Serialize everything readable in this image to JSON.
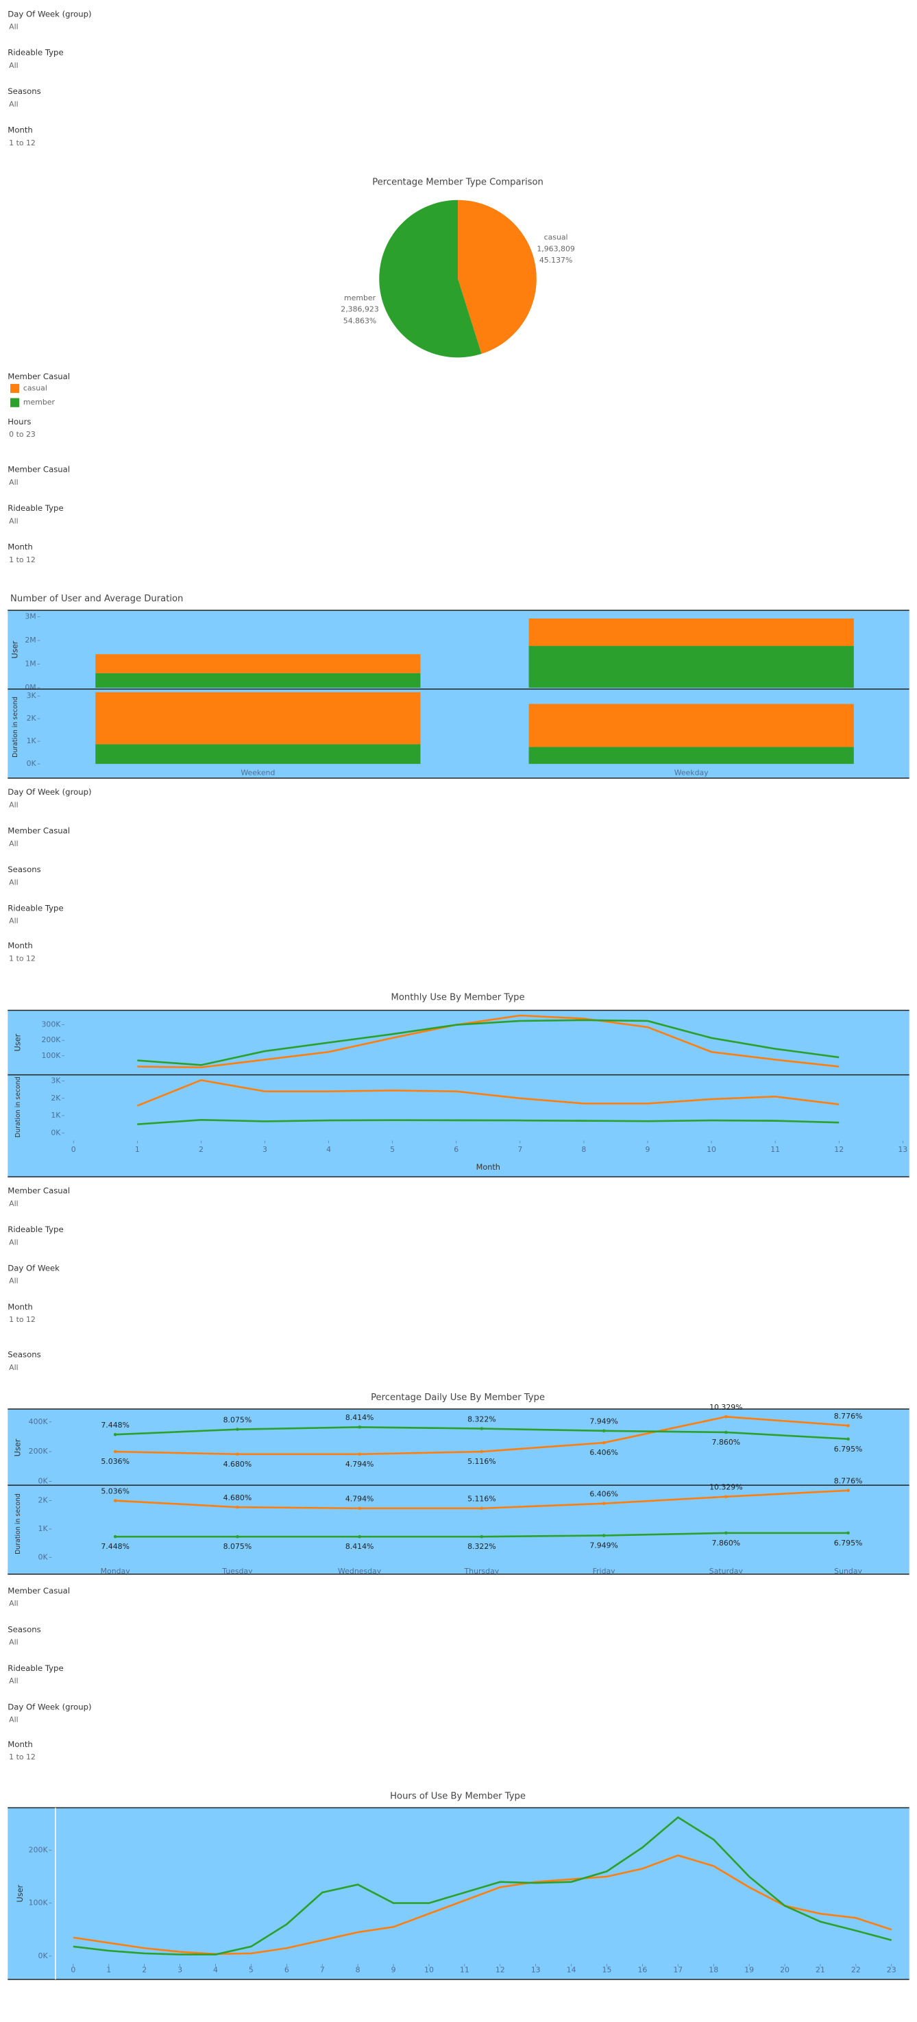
{
  "filter_groups": [
    [
      {
        "label": "Day Of Week (group)",
        "value": "All"
      },
      {
        "label": "Rideable Type",
        "value": "All"
      },
      {
        "label": "Seasons",
        "value": "All"
      },
      {
        "label": "Month",
        "value": "1 to 12"
      }
    ],
    [
      {
        "label": "Hours",
        "value": "0 to 23"
      },
      {
        "label": "Member Casual",
        "value": "All"
      },
      {
        "label": "Rideable Type",
        "value": "All"
      },
      {
        "label": "Month",
        "value": "1 to 12"
      }
    ],
    [
      {
        "label": "Day Of Week (group)",
        "value": "All"
      },
      {
        "label": "Member Casual",
        "value": "All"
      },
      {
        "label": "Seasons",
        "value": "All"
      },
      {
        "label": "Rideable Type",
        "value": "All"
      },
      {
        "label": "Month",
        "value": "1 to 12"
      }
    ],
    [
      {
        "label": "Member Casual",
        "value": "All"
      },
      {
        "label": "Rideable Type",
        "value": "All"
      },
      {
        "label": "Day Of Week",
        "value": "All"
      },
      {
        "label": "Month",
        "value": "1 to 12"
      },
      {
        "label": "Seasons",
        "value": "All"
      }
    ],
    [
      {
        "label": "Member Casual",
        "value": "All"
      },
      {
        "label": "Seasons",
        "value": "All"
      },
      {
        "label": "Rideable Type",
        "value": "All"
      },
      {
        "label": "Day Of Week (group)",
        "value": "All"
      },
      {
        "label": "Month",
        "value": "1 to 12"
      }
    ]
  ],
  "chart_data": [
    {
      "type": "pie",
      "title": "Percentage Member Type Comparison",
      "categories": [
        "casual",
        "member"
      ],
      "values": [
        45.137,
        54.863
      ],
      "value_labels": [
        "45.137%",
        "54.863%"
      ],
      "count_labels": [
        "1,963,809",
        "2,386,923"
      ],
      "colors": [
        "#ff7f0e",
        "#2ca02c"
      ],
      "legend_title": "Member Casual"
    },
    {
      "type": "stacked_bar",
      "title": "Number of User and Average Duration",
      "categories": [
        "Weekend",
        "Weekday"
      ],
      "panes": [
        {
          "y_label": "User",
          "ylim": [
            0,
            3220000
          ],
          "yticks": [
            {
              "value": 0,
              "label": "0M"
            },
            {
              "value": 1000000,
              "label": "1M"
            },
            {
              "value": 2000000,
              "label": "2M"
            },
            {
              "value": 3000000,
              "label": "3M"
            }
          ],
          "series": [
            {
              "color": "#ff7f0e",
              "values": [
                800000,
                1160000
              ]
            },
            {
              "color": "#2ca02c",
              "values": [
                620000,
                1770000
              ]
            }
          ]
        },
        {
          "y_label": "Duration in second",
          "ylim": [
            0,
            3250
          ],
          "yticks": [
            {
              "value": 0,
              "label": "0K"
            },
            {
              "value": 1000,
              "label": "1K"
            },
            {
              "value": 2000,
              "label": "2K"
            },
            {
              "value": 3000,
              "label": "3K"
            }
          ],
          "series": [
            {
              "color": "#ff7f0e",
              "values": [
                2300,
                1900
              ]
            },
            {
              "color": "#2ca02c",
              "values": [
                870,
                750
              ]
            }
          ]
        }
      ]
    },
    {
      "type": "line",
      "title": "Monthly Use By Member Type",
      "x": [
        1,
        2,
        3,
        4,
        5,
        6,
        7,
        8,
        9,
        10,
        11,
        12
      ],
      "xlim": [
        0,
        13
      ],
      "xticks": [
        0,
        1,
        2,
        3,
        4,
        5,
        6,
        7,
        8,
        9,
        10,
        11,
        12,
        13
      ],
      "x_label": "Month",
      "panes": [
        {
          "y_label": "User",
          "ylim": [
            -15000,
            385000
          ],
          "yticks": [
            {
              "value": 100000,
              "label": "100K"
            },
            {
              "value": 200000,
              "label": "200K"
            },
            {
              "value": 300000,
              "label": "300K"
            }
          ],
          "series": [
            {
              "color": "#ff7f0e",
              "values": [
                30000,
                25000,
                75000,
                125000,
                215000,
                300000,
                360000,
                340000,
                285000,
                125000,
                75000,
                30000
              ]
            },
            {
              "color": "#2ca02c",
              "values": [
                70000,
                40000,
                130000,
                185000,
                240000,
                300000,
                325000,
                330000,
                325000,
                215000,
                145000,
                90000
              ]
            }
          ]
        },
        {
          "y_label": "Duration in second",
          "ylim": [
            -300,
            3280
          ],
          "yticks": [
            {
              "value": 0,
              "label": "0K"
            },
            {
              "value": 1000,
              "label": "1K"
            },
            {
              "value": 2000,
              "label": "2K"
            },
            {
              "value": 3000,
              "label": "3K"
            }
          ],
          "series": [
            {
              "color": "#ff7f0e",
              "values": [
                1570,
                3050,
                2400,
                2400,
                2450,
                2400,
                2000,
                1700,
                1700,
                1950,
                2100,
                1650
              ]
            },
            {
              "color": "#2ca02c",
              "values": [
                500,
                750,
                670,
                720,
                740,
                730,
                720,
                700,
                680,
                720,
                700,
                600
              ]
            }
          ]
        }
      ]
    },
    {
      "type": "category_line",
      "title": "Percentage Daily Use By Member Type",
      "categories": [
        "Monday",
        "Tuesday",
        "Wednesday",
        "Thursday",
        "Friday",
        "Saturday",
        "Sunday"
      ],
      "panes": [
        {
          "y_label": "User",
          "ylim": [
            -26000,
            478000
          ],
          "yticks": [
            {
              "value": 0,
              "label": "0K"
            },
            {
              "value": 200000,
              "label": "200K"
            },
            {
              "value": 400000,
              "label": "400K"
            }
          ],
          "series": [
            {
              "color": "#ff7f0e",
              "values": [
                200000,
                183000,
                183000,
                200000,
                260000,
                435000,
                375000
              ],
              "point_labels": [
                "5.036%",
                "4.680%",
                "4.794%",
                "5.116%",
                "6.406%",
                "10.329%",
                "8.776%"
              ]
            },
            {
              "color": "#2ca02c",
              "values": [
                315000,
                350000,
                365000,
                355000,
                340000,
                330000,
                285000
              ],
              "point_labels": [
                "7.448%",
                "8.075%",
                "8.414%",
                "8.322%",
                "7.949%",
                "7.860%",
                "6.795%"
              ]
            }
          ]
        },
        {
          "y_label": "Duration in second",
          "ylim": [
            -140,
            2500
          ],
          "yticks": [
            {
              "value": 0,
              "label": "0K"
            },
            {
              "value": 1000,
              "label": "1K"
            },
            {
              "value": 2000,
              "label": "2K"
            }
          ],
          "series": [
            {
              "color": "#ff7f0e",
              "values": [
                2000,
                1770,
                1730,
                1730,
                1900,
                2140,
                2360
              ],
              "point_labels": [
                "5.036%",
                "4.680%",
                "4.794%",
                "5.116%",
                "6.406%",
                "10.329%",
                "8.776%"
              ]
            },
            {
              "color": "#2ca02c",
              "values": [
                730,
                730,
                730,
                730,
                770,
                860,
                860
              ],
              "point_labels": [
                "7.448%",
                "8.075%",
                "8.414%",
                "8.322%",
                "7.949%",
                "7.860%",
                "6.795%"
              ]
            }
          ]
        }
      ]
    },
    {
      "type": "line",
      "title": "Hours of Use By Member Type",
      "x": [
        0,
        1,
        2,
        3,
        4,
        5,
        6,
        7,
        8,
        9,
        10,
        11,
        12,
        13,
        14,
        15,
        16,
        17,
        18,
        19,
        20,
        21,
        22,
        23
      ],
      "xlim": [
        -0.5,
        23.5
      ],
      "xticks": [
        0,
        1,
        2,
        3,
        4,
        5,
        6,
        7,
        8,
        9,
        10,
        11,
        12,
        13,
        14,
        15,
        16,
        17,
        18,
        19,
        20,
        21,
        22,
        23
      ],
      "panes": [
        {
          "y_label": "User",
          "ylim": [
            -44000,
            280000
          ],
          "yticks": [
            {
              "value": 0,
              "label": "0K"
            },
            {
              "value": 100000,
              "label": "100K"
            },
            {
              "value": 200000,
              "label": "200K"
            }
          ],
          "series": [
            {
              "color": "#ff7f0e",
              "values": [
                35000,
                25000,
                15000,
                8000,
                4000,
                5000,
                15000,
                30000,
                45000,
                55000,
                80000,
                105000,
                130000,
                140000,
                145000,
                150000,
                165000,
                190000,
                170000,
                130000,
                95000,
                80000,
                72000,
                50000
              ]
            },
            {
              "color": "#2ca02c",
              "values": [
                18000,
                10000,
                5000,
                3000,
                3000,
                18000,
                60000,
                120000,
                135000,
                100000,
                100000,
                120000,
                140000,
                138000,
                140000,
                160000,
                205000,
                262000,
                220000,
                150000,
                95000,
                65000,
                48000,
                30000
              ]
            }
          ]
        }
      ]
    }
  ]
}
